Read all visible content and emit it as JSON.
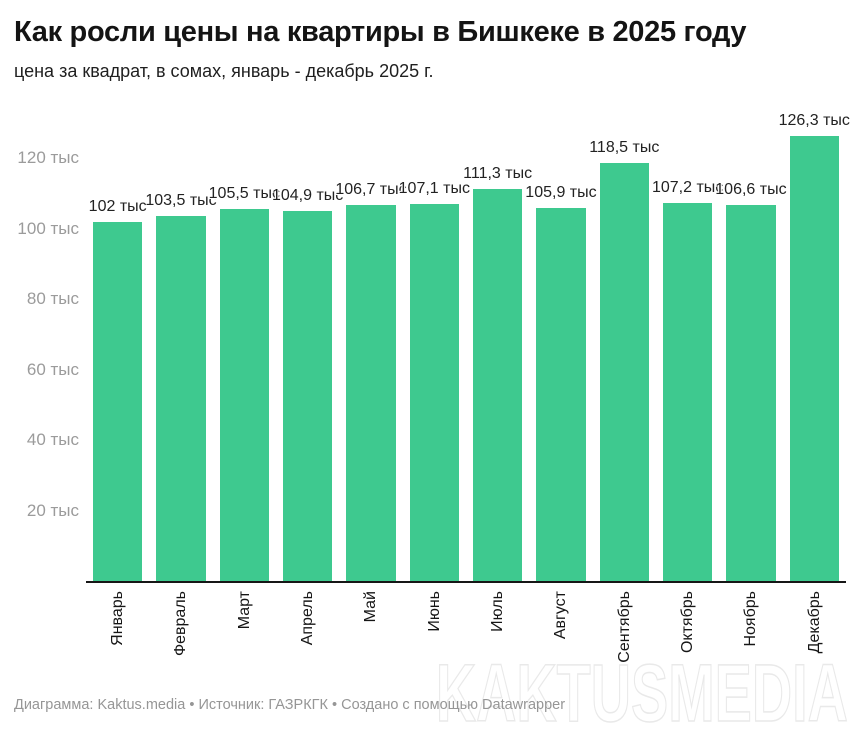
{
  "header": {
    "title": "Как росли цены на квартиры в Бишкеке в 2025 году",
    "subtitle": "цена за квадрат, в сомах, январь - декабрь 2025 г."
  },
  "chart_data": {
    "type": "bar",
    "title": "Как росли цены на квартиры в Бишкеке в 2025 году",
    "subtitle": "цена за квадрат, в сомах, январь - декабрь 2025 г.",
    "categories": [
      "Январь",
      "Февраль",
      "Март",
      "Апрель",
      "Май",
      "Июнь",
      "Июль",
      "Август",
      "Сентябрь",
      "Октябрь",
      "Ноябрь",
      "Декабрь"
    ],
    "values": [
      102,
      103.5,
      105.5,
      104.9,
      106.7,
      107.1,
      111.3,
      105.9,
      118.5,
      107.2,
      106.6,
      126.3
    ],
    "value_labels": [
      "102 тыс",
      "103,5 тыс",
      "105,5 тыс",
      "104,9 тыс",
      "106,7 тыс",
      "107,1 тыс",
      "111,3 тыс",
      "105,9 тыс",
      "118,5 тыс",
      "107,2 тыс",
      "106,6 тыс",
      "126,3 тыс"
    ],
    "unit": "тыс",
    "xlabel": "",
    "ylabel": "",
    "ylim": [
      0,
      128
    ],
    "yticks": [
      20,
      40,
      60,
      80,
      100,
      120
    ],
    "ytick_labels": [
      "20 тыс",
      "40 тыс",
      "60 тыс",
      "80 тыс",
      "100 тыс",
      "120 тыс"
    ],
    "grid": false,
    "legend": false,
    "bar_color": "#3ec98f",
    "axis_line_color": "#161616"
  },
  "footer": {
    "credit": "Диаграмма: Kaktus.media • Источник: ГАЗРКГК • Создано с помощью Datawrapper"
  },
  "watermark": "KAKTUSMEDIA",
  "colors": {
    "bar": "#3ec98f",
    "title": "#141414",
    "subtitle": "#1f1f1f",
    "ytick": "#9b9b9b",
    "value_label": "#222222",
    "footer": "#969696",
    "watermark_stroke": "#e9e9e9",
    "background": "#ffffff"
  }
}
